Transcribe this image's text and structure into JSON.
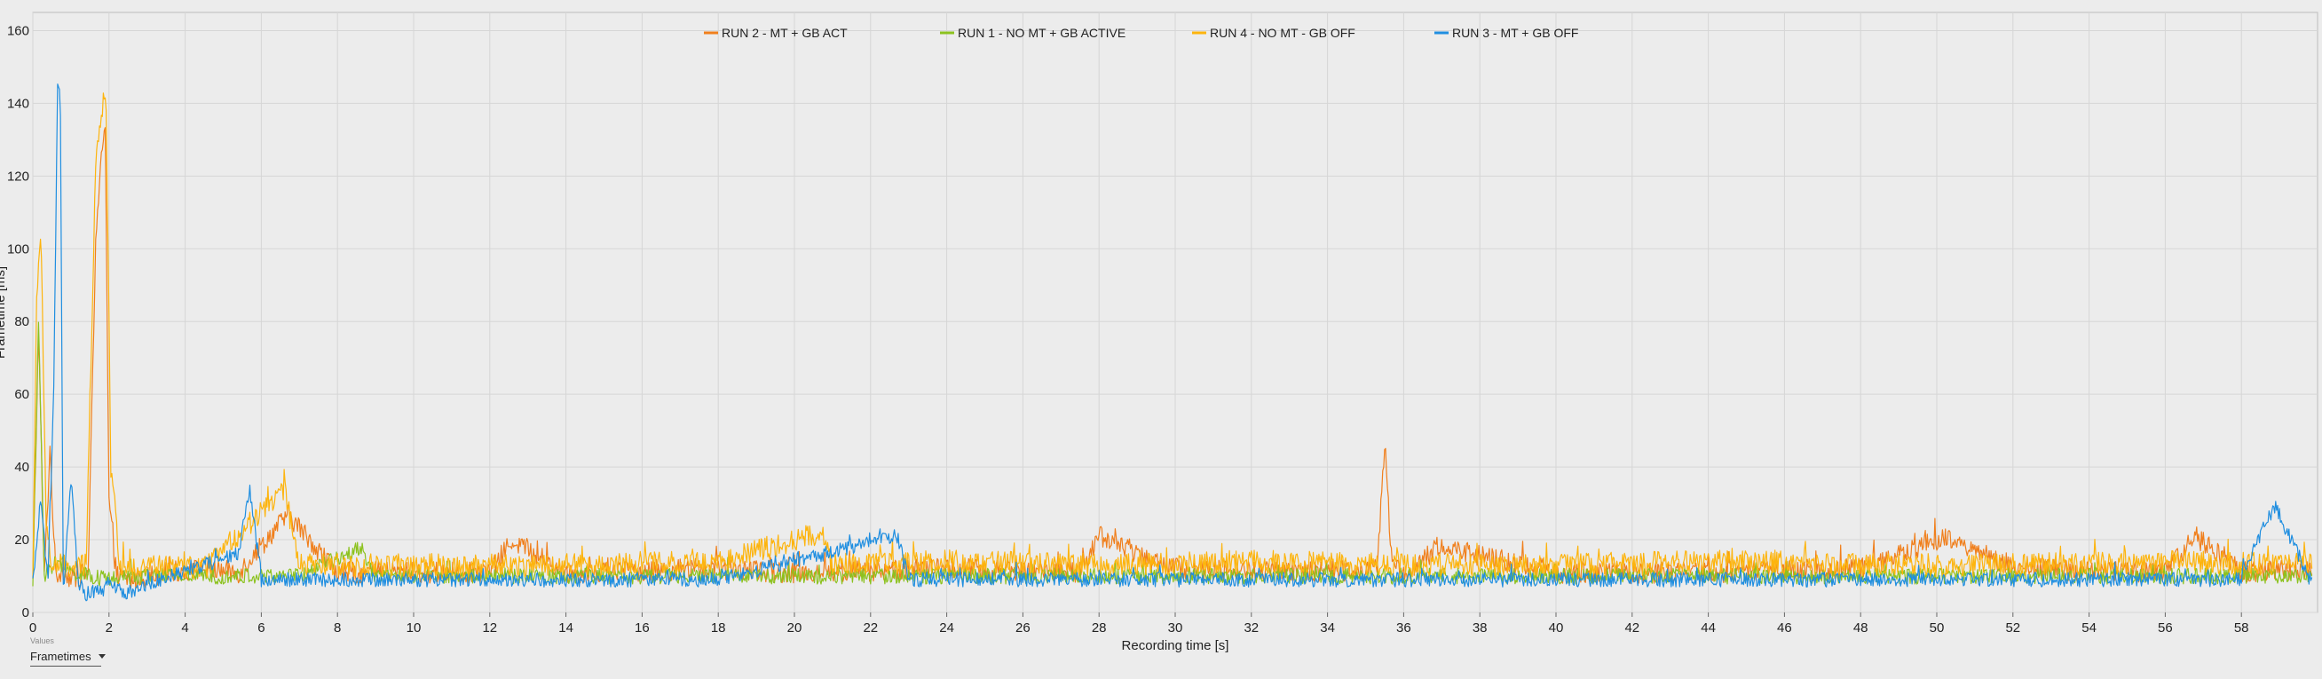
{
  "chart_data": {
    "type": "line",
    "title": "",
    "xlabel": "Recording time [s]",
    "ylabel": "Frametime [ms]",
    "xlim": [
      0,
      60
    ],
    "ylim": [
      0,
      165
    ],
    "x_ticks": [
      0,
      2,
      4,
      6,
      8,
      10,
      12,
      14,
      16,
      18,
      20,
      22,
      24,
      26,
      28,
      30,
      32,
      34,
      36,
      38,
      40,
      42,
      44,
      46,
      48,
      50,
      52,
      54,
      56,
      58
    ],
    "y_ticks": [
      0,
      20,
      40,
      60,
      80,
      100,
      120,
      140,
      160
    ],
    "grid": true,
    "legend_position": "top-center",
    "series": [
      {
        "name": "RUN 2 - MT + GB ACT",
        "color": "#f07f1c",
        "x": [
          0,
          0.15,
          0.3,
          0.45,
          0.6,
          0.8,
          1.0,
          1.2,
          1.45,
          1.65,
          1.8,
          1.9,
          2.0,
          2.2,
          2.6,
          3.5,
          4.5,
          5.4,
          6.7,
          8.0,
          10.0,
          12.0,
          12.6,
          14.0,
          18.0,
          20.0,
          24.0,
          27.5,
          28.0,
          30.0,
          33.0,
          35.3,
          35.5,
          35.7,
          36.2,
          37.0,
          37.4,
          40.0,
          44.0,
          48.0,
          50.3,
          52.0,
          56.0,
          56.8,
          58.0,
          59.8
        ],
        "values": [
          8,
          78,
          9,
          45,
          10,
          12,
          9,
          10,
          11,
          100,
          128,
          134,
          30,
          10,
          9,
          11,
          12,
          11,
          27,
          11,
          11,
          11,
          20,
          11,
          12,
          11,
          12,
          11,
          21,
          12,
          11,
          12,
          47,
          12,
          11,
          19,
          17,
          11,
          11,
          12,
          21,
          12,
          11,
          21,
          11,
          12
        ],
        "noise": 3
      },
      {
        "name": "RUN 1 - NO MT + GB ACTIVE",
        "color": "#8cc21f",
        "x": [
          0,
          0.15,
          0.3,
          0.6,
          1.0,
          1.5,
          2.0,
          3.0,
          5.0,
          7.0,
          8.6,
          9.0,
          12.0,
          16.0,
          20.0,
          24.0,
          28.0,
          32.0,
          36.0,
          40.0,
          44.0,
          48.0,
          52.0,
          56.0,
          59.8
        ],
        "values": [
          9,
          80,
          10,
          14,
          11,
          10,
          9,
          10,
          10,
          10,
          18,
          10,
          10,
          10,
          10,
          10,
          10,
          10,
          10,
          10,
          10,
          10,
          10,
          10,
          10
        ],
        "noise": 2.2
      },
      {
        "name": "RUN 4 - NO MT - GB OFF",
        "color": "#fdb40d",
        "x": [
          0,
          0.1,
          0.22,
          0.35,
          0.5,
          0.7,
          1.0,
          1.4,
          1.65,
          1.8,
          1.92,
          2.05,
          2.3,
          3.0,
          4.5,
          6.6,
          7.0,
          10.0,
          14.0,
          18.0,
          20.7,
          21.0,
          24.0,
          28.0,
          32.0,
          36.0,
          40.0,
          44.0,
          48.0,
          52.0,
          56.0,
          59.8
        ],
        "values": [
          10,
          88,
          102,
          25,
          12,
          13,
          12,
          13,
          125,
          138,
          142,
          40,
          12,
          13,
          12,
          34,
          13,
          13,
          13,
          14,
          22,
          13,
          14,
          13,
          14,
          13,
          13,
          14,
          13,
          13,
          14,
          13
        ],
        "noise": 3.2
      },
      {
        "name": "RUN 3 - MT + GB OFF",
        "color": "#1f8ee0",
        "x": [
          0,
          0.2,
          0.4,
          0.55,
          0.65,
          0.72,
          0.8,
          1.0,
          1.2,
          1.4,
          2.0,
          2.6,
          3.0,
          5.4,
          5.7,
          6.0,
          10.0,
          14.0,
          18.0,
          22.7,
          23.0,
          26.0,
          30.0,
          34.0,
          38.0,
          42.0,
          46.0,
          50.0,
          54.0,
          58.0,
          58.6,
          58.9,
          59.8
        ],
        "values": [
          8,
          30,
          9,
          62,
          143,
          144,
          6,
          37,
          8,
          5,
          7,
          5,
          8,
          16,
          34,
          9,
          9,
          9,
          9,
          21,
          9,
          9,
          9,
          9,
          9,
          9,
          9,
          9,
          9,
          9,
          24,
          29,
          9
        ],
        "noise": 2
      }
    ]
  },
  "controls": {
    "caption": "Values",
    "dropdown_value": "Frametimes"
  }
}
